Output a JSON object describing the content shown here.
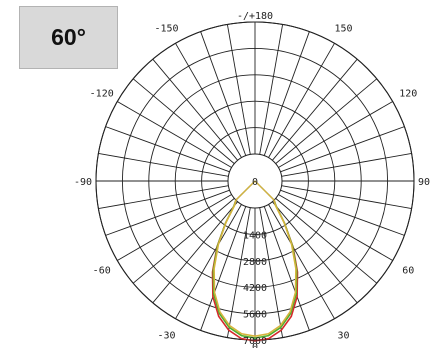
{
  "badge": {
    "label": "60°"
  },
  "chart_data": {
    "type": "polar",
    "radial_axis": {
      "center_value": "0",
      "ticks": [
        1400,
        2800,
        4200,
        5600,
        7000
      ],
      "tick_labels": [
        "1400",
        "2800",
        "4200",
        "5600",
        "7000"
      ],
      "max": 7000
    },
    "angle_labels": [
      {
        "angle": 0,
        "text": "0"
      },
      {
        "angle": 30,
        "text": "30"
      },
      {
        "angle": -30,
        "text": "-30"
      },
      {
        "angle": 60,
        "text": "60"
      },
      {
        "angle": -60,
        "text": "-60"
      },
      {
        "angle": 90,
        "text": "90"
      },
      {
        "angle": -90,
        "text": "-90"
      },
      {
        "angle": 120,
        "text": "120"
      },
      {
        "angle": -120,
        "text": "-120"
      },
      {
        "angle": 150,
        "text": "150"
      },
      {
        "angle": -150,
        "text": "-150"
      },
      {
        "angle": 180,
        "text": "-/+180"
      }
    ],
    "spoke_step_deg": 10,
    "series": [
      {
        "color": "#d42a2a",
        "points": [
          [
            0,
            7050
          ],
          [
            5,
            6950
          ],
          [
            10,
            6600
          ],
          [
            15,
            6000
          ],
          [
            20,
            5100
          ],
          [
            25,
            3900
          ],
          [
            30,
            2600
          ],
          [
            35,
            1300
          ],
          [
            40,
            300
          ],
          [
            45,
            0
          ]
        ]
      },
      {
        "color": "#4fae2e",
        "points": [
          [
            0,
            6900
          ],
          [
            5,
            6800
          ],
          [
            10,
            6450
          ],
          [
            15,
            5850
          ],
          [
            20,
            4950
          ],
          [
            25,
            3800
          ],
          [
            30,
            2550
          ],
          [
            35,
            1300
          ],
          [
            40,
            300
          ],
          [
            45,
            0
          ]
        ]
      },
      {
        "color": "#d6b43c",
        "points": [
          [
            0,
            6800
          ],
          [
            5,
            6700
          ],
          [
            10,
            6350
          ],
          [
            15,
            5750
          ],
          [
            20,
            4850
          ],
          [
            25,
            3700
          ],
          [
            30,
            2450
          ],
          [
            35,
            1250
          ],
          [
            40,
            250
          ],
          [
            45,
            0
          ]
        ]
      }
    ],
    "grid": true
  }
}
